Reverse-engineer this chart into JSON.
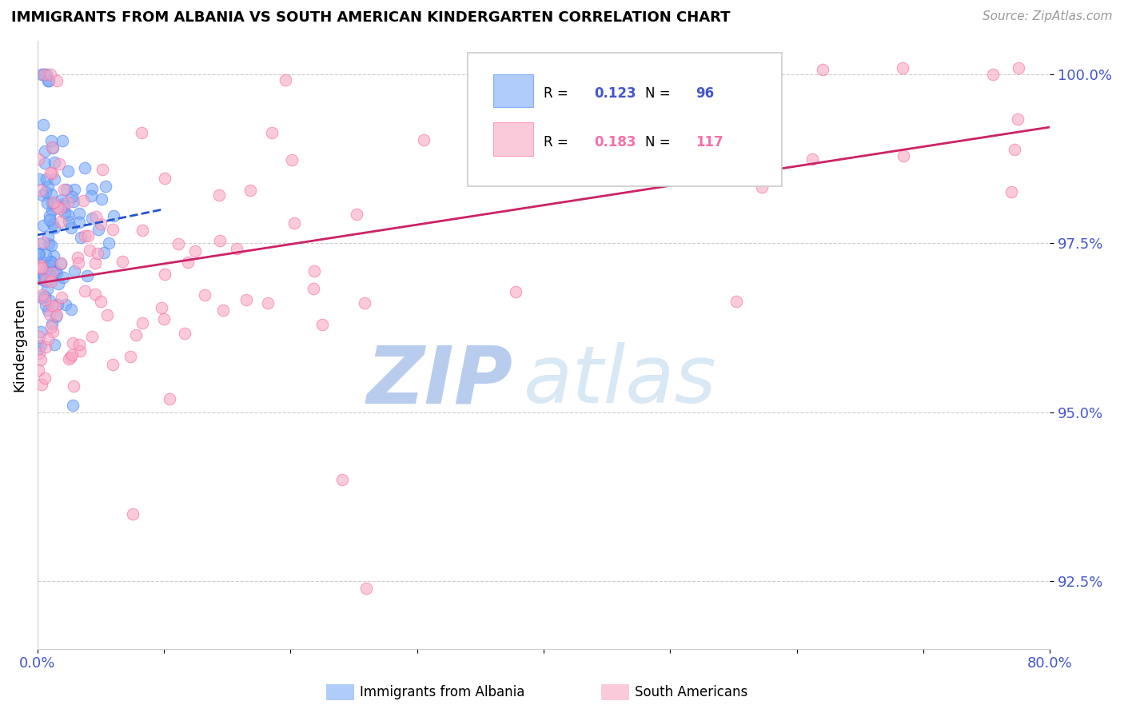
{
  "title": "IMMIGRANTS FROM ALBANIA VS SOUTH AMERICAN KINDERGARTEN CORRELATION CHART",
  "source": "Source: ZipAtlas.com",
  "ylabel": "Kindergarten",
  "xlim": [
    0.0,
    0.8
  ],
  "ylim": [
    0.915,
    1.005
  ],
  "yticks": [
    0.925,
    0.95,
    0.975,
    1.0
  ],
  "ytick_labels": [
    "92.5%",
    "95.0%",
    "97.5%",
    "100.0%"
  ],
  "albania_color": "#7baaf7",
  "albania_edge_color": "#4f86f7",
  "south_american_color": "#f7a8c4",
  "south_american_edge_color": "#f76fa8",
  "trendline_albania_color": "#2255cc",
  "trendline_south_american_color": "#cc2266",
  "watermark_zip": "ZIP",
  "watermark_atlas": "atlas",
  "watermark_color": "#d0dff5",
  "background_color": "#ffffff",
  "grid_color": "#cccccc",
  "axis_tick_color": "#4455cc",
  "legend_box_color": "#eeeeee",
  "legend_r1_val": "0.123",
  "legend_n1_val": "96",
  "legend_r2_val": "0.183",
  "legend_n2_val": "117",
  "bottom_legend_albania": "Immigrants from Albania",
  "bottom_legend_sa": "South Americans"
}
